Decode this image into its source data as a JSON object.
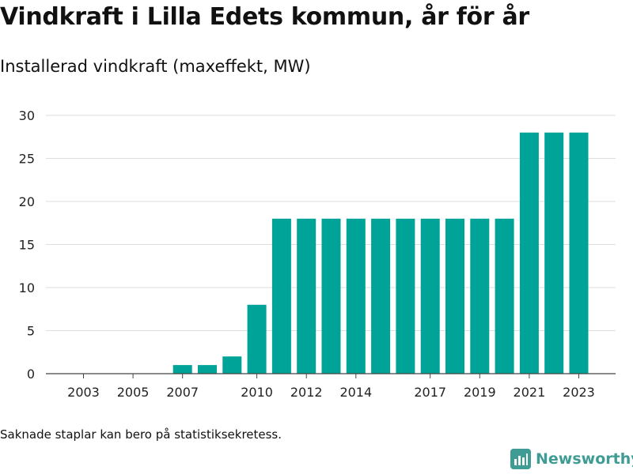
{
  "title": "Vindkraft i Lilla Edets kommun, år för år",
  "subtitle": "Installerad vindkraft (maxeffekt, MW)",
  "footnote": "Saknade staplar kan bero på statistiksekretess.",
  "brand": {
    "name": "Newsworthy",
    "icon": "newsworthy-logo-icon",
    "color": "#3f9c95"
  },
  "chart_data": {
    "type": "bar",
    "categories": [
      "2003",
      "2004",
      "2005",
      "2006",
      "2007",
      "2008",
      "2009",
      "2010",
      "2011",
      "2012",
      "2013",
      "2014",
      "2015",
      "2016",
      "2017",
      "2018",
      "2019",
      "2020",
      "2021",
      "2022",
      "2023"
    ],
    "values": [
      0,
      0,
      0,
      0,
      1,
      1,
      2,
      8,
      18,
      18,
      18,
      18,
      18,
      18,
      18,
      18,
      18,
      18,
      28,
      28,
      28
    ],
    "x_tick_labels": [
      "2003",
      "2005",
      "2007",
      "2010",
      "2012",
      "2014",
      "2017",
      "2019",
      "2021",
      "2023"
    ],
    "y_ticks": [
      0,
      5,
      10,
      15,
      20,
      25,
      30
    ],
    "ylim": [
      0,
      30
    ],
    "xlabel": "",
    "ylabel": "",
    "grid": true,
    "bar_color": "#00a398"
  }
}
